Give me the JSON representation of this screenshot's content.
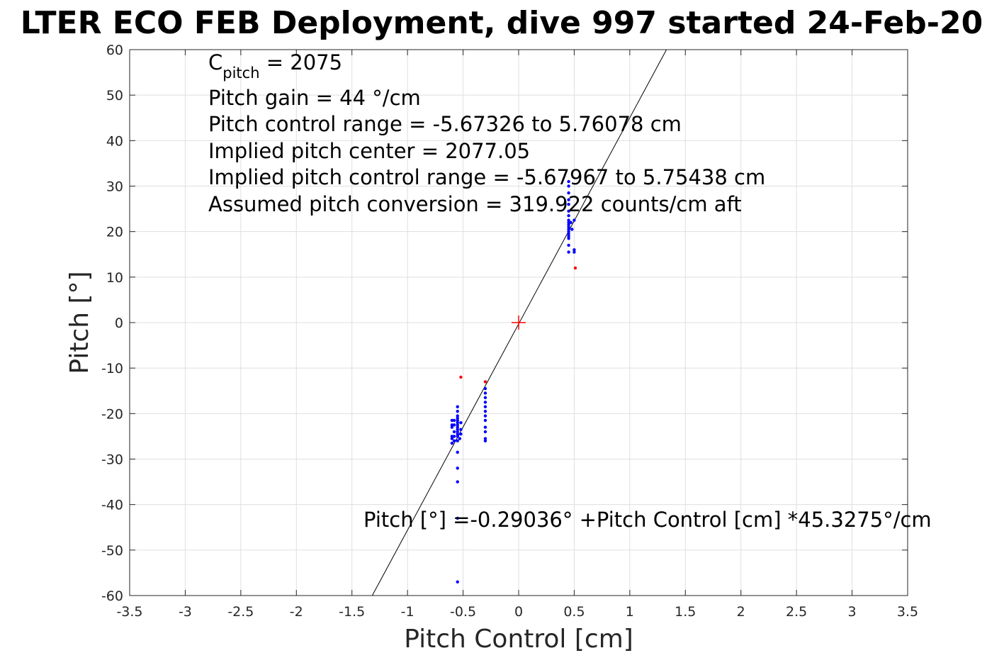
{
  "chart_data": {
    "type": "scatter",
    "title": "LTER ECO FEB Deployment, dive 997 started 24-Feb-20",
    "xlabel": "Pitch Control [cm]",
    "ylabel": "Pitch [°]",
    "xlim": [
      -3.5,
      3.5
    ],
    "ylim": [
      -60,
      60
    ],
    "grid": true,
    "x_ticks": [
      -3.5,
      -3,
      -2.5,
      -2,
      -1.5,
      -1,
      -0.5,
      0,
      0.5,
      1,
      1.5,
      2,
      2.5,
      3,
      3.5
    ],
    "x_tick_labels": [
      "-3.5",
      "-3",
      "-2.5",
      "-2",
      "-1.5",
      "-1",
      "-0.5",
      "0",
      "0.5",
      "1",
      "1.5",
      "2",
      "2.5",
      "3",
      "3.5"
    ],
    "y_ticks": [
      -60,
      -50,
      -40,
      -30,
      -20,
      -10,
      0,
      10,
      20,
      30,
      40,
      50,
      60
    ],
    "y_tick_labels": [
      "-60",
      "-50",
      "-40",
      "-30",
      "-20",
      "-10",
      "0",
      "10",
      "20",
      "30",
      "40",
      "50",
      "60"
    ],
    "annotation": {
      "c_pitch_main": "C",
      "c_pitch_sub": "pitch",
      "c_pitch_rest": " = 2075",
      "lines": [
        "Pitch gain = 44 °/cm",
        "Pitch control range = -5.67326 to 5.76078 cm",
        "Implied pitch center = 2077.05",
        "Implied pitch control range = -5.67967 to 5.75438 cm",
        "Assumed pitch conversion = 319.922 counts/cm aft"
      ]
    },
    "fit_label": "Pitch [°] =-0.29036° +Pitch Control [cm] *45.3275°/cm",
    "fit": {
      "intercept": -0.29036,
      "slope": 45.3275,
      "color": "#000000"
    },
    "center_marker": {
      "x": 0,
      "y": 0,
      "color": "#ff0000"
    },
    "series": [
      {
        "color": "#0000ff",
        "points": [
          [
            0.45,
            31
          ],
          [
            0.45,
            30
          ],
          [
            0.45,
            28.5
          ],
          [
            0.45,
            27
          ],
          [
            0.45,
            26
          ],
          [
            0.45,
            24.5
          ],
          [
            0.45,
            23.5
          ],
          [
            0.45,
            22.5
          ],
          [
            0.45,
            22
          ],
          [
            0.45,
            21.5
          ],
          [
            0.45,
            21
          ],
          [
            0.45,
            20.5
          ],
          [
            0.45,
            20
          ],
          [
            0.45,
            19.5
          ],
          [
            0.45,
            19
          ],
          [
            0.45,
            18.5
          ],
          [
            0.45,
            17
          ],
          [
            0.45,
            15.5
          ],
          [
            0.47,
            22
          ],
          [
            0.48,
            20.5
          ],
          [
            0.5,
            22.5
          ],
          [
            0.5,
            16
          ],
          [
            0.5,
            15.5
          ],
          [
            -0.3,
            -14.5
          ],
          [
            -0.3,
            -15.5
          ],
          [
            -0.3,
            -16.5
          ],
          [
            -0.3,
            -17.5
          ],
          [
            -0.3,
            -18.5
          ],
          [
            -0.3,
            -19.5
          ],
          [
            -0.3,
            -20.5
          ],
          [
            -0.3,
            -21.5
          ],
          [
            -0.3,
            -23
          ],
          [
            -0.3,
            -24
          ],
          [
            -0.3,
            -25.5
          ],
          [
            -0.3,
            -26
          ],
          [
            -0.55,
            -18.5
          ],
          [
            -0.55,
            -19.5
          ],
          [
            -0.55,
            -20.5
          ],
          [
            -0.55,
            -21
          ],
          [
            -0.55,
            -21.5
          ],
          [
            -0.55,
            -22
          ],
          [
            -0.55,
            -22.5
          ],
          [
            -0.55,
            -23
          ],
          [
            -0.55,
            -23.5
          ],
          [
            -0.55,
            -24
          ],
          [
            -0.55,
            -24.5
          ],
          [
            -0.55,
            -25
          ],
          [
            -0.55,
            -26
          ],
          [
            -0.55,
            -28.5
          ],
          [
            -0.55,
            -32
          ],
          [
            -0.55,
            -35
          ],
          [
            -0.55,
            -43
          ],
          [
            -0.55,
            -57
          ],
          [
            -0.58,
            -21.5
          ],
          [
            -0.58,
            -22.5
          ],
          [
            -0.58,
            -24
          ],
          [
            -0.58,
            -25
          ],
          [
            -0.58,
            -26
          ],
          [
            -0.6,
            -21.5
          ],
          [
            -0.6,
            -22.5
          ],
          [
            -0.6,
            -23
          ],
          [
            -0.6,
            -25
          ],
          [
            -0.6,
            -25.5
          ],
          [
            -0.6,
            -26.5
          ],
          [
            -0.52,
            -22
          ],
          [
            -0.52,
            -23.5
          ],
          [
            -0.52,
            -24.5
          ],
          [
            -0.53,
            -25.5
          ]
        ]
      },
      {
        "color": "#ff0000",
        "points": [
          [
            0.51,
            12
          ],
          [
            -0.52,
            -12
          ],
          [
            -0.3,
            -13
          ]
        ]
      }
    ]
  }
}
